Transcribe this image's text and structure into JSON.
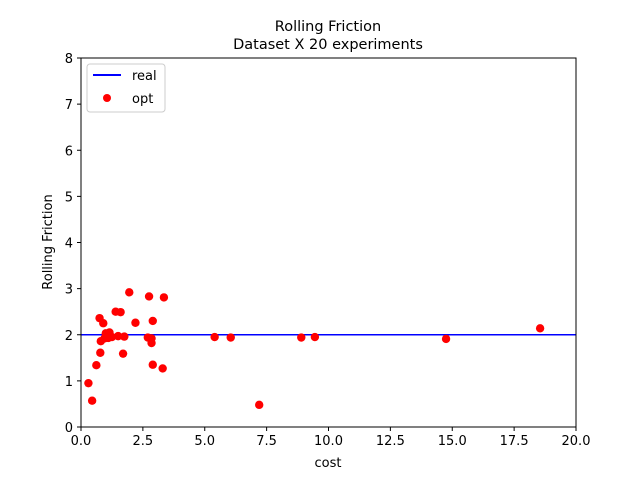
{
  "chart_data": {
    "type": "scatter",
    "title": "Rolling Friction",
    "subtitle": "Dataset X 20 experiments",
    "xlabel": "cost",
    "ylabel": "Rolling Friction",
    "xlim": [
      0,
      20
    ],
    "ylim": [
      0,
      8
    ],
    "x_ticks": [
      0.0,
      2.5,
      5.0,
      7.5,
      10.0,
      12.5,
      15.0,
      17.5,
      20.0
    ],
    "x_tick_labels": [
      "0.0",
      "2.5",
      "5.0",
      "7.5",
      "10.0",
      "12.5",
      "15.0",
      "17.5",
      "20.0"
    ],
    "y_ticks": [
      0,
      1,
      2,
      3,
      4,
      5,
      6,
      7,
      8
    ],
    "y_tick_labels": [
      "0",
      "1",
      "2",
      "3",
      "4",
      "5",
      "6",
      "7",
      "8"
    ],
    "grid": false,
    "legend_position": "top-left",
    "series": [
      {
        "name": "real",
        "kind": "hline",
        "color": "#0000ff",
        "y": 2.0
      },
      {
        "name": "opt",
        "kind": "points",
        "color": "#ff0000",
        "points": [
          {
            "x": 0.3,
            "y": 0.95
          },
          {
            "x": 0.45,
            "y": 0.57
          },
          {
            "x": 0.62,
            "y": 1.34
          },
          {
            "x": 0.75,
            "y": 2.36
          },
          {
            "x": 0.78,
            "y": 1.61
          },
          {
            "x": 0.8,
            "y": 1.86
          },
          {
            "x": 0.9,
            "y": 2.25
          },
          {
            "x": 0.95,
            "y": 1.92
          },
          {
            "x": 1.0,
            "y": 2.03
          },
          {
            "x": 1.1,
            "y": 1.93
          },
          {
            "x": 1.15,
            "y": 2.05
          },
          {
            "x": 1.25,
            "y": 1.95
          },
          {
            "x": 1.4,
            "y": 2.5
          },
          {
            "x": 1.5,
            "y": 1.97
          },
          {
            "x": 1.6,
            "y": 2.49
          },
          {
            "x": 1.7,
            "y": 1.59
          },
          {
            "x": 1.75,
            "y": 1.96
          },
          {
            "x": 1.95,
            "y": 2.92
          },
          {
            "x": 2.2,
            "y": 2.26
          },
          {
            "x": 2.7,
            "y": 1.94
          },
          {
            "x": 2.75,
            "y": 2.83
          },
          {
            "x": 2.85,
            "y": 1.92
          },
          {
            "x": 2.85,
            "y": 1.82
          },
          {
            "x": 2.9,
            "y": 1.35
          },
          {
            "x": 2.9,
            "y": 2.3
          },
          {
            "x": 3.3,
            "y": 1.27
          },
          {
            "x": 3.35,
            "y": 2.81
          },
          {
            "x": 5.4,
            "y": 1.95
          },
          {
            "x": 6.05,
            "y": 1.94
          },
          {
            "x": 7.2,
            "y": 0.48
          },
          {
            "x": 8.9,
            "y": 1.94
          },
          {
            "x": 9.45,
            "y": 1.95
          },
          {
            "x": 14.75,
            "y": 1.91
          },
          {
            "x": 18.55,
            "y": 2.14
          }
        ]
      }
    ]
  }
}
